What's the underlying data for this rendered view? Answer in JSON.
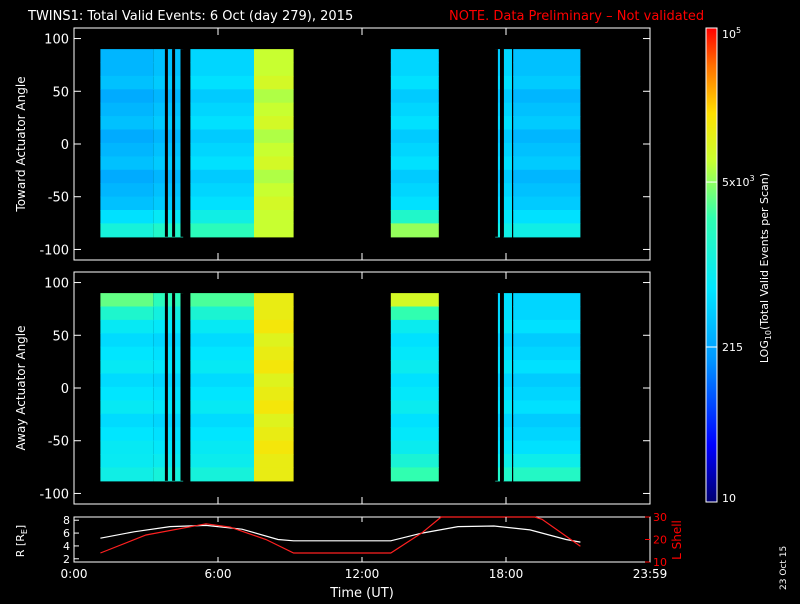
{
  "title": {
    "main": "TWINS1: Total Valid Events:  6 Oct (day 279), 2015",
    "note": "NOTE. Data Preliminary – Not validated"
  },
  "footer_date": "23 Oct 15",
  "colors": {
    "background": "#000000",
    "axis": "#ffffff",
    "note": "#ff0000",
    "orbit_r": "#ffffff",
    "orbit_l": "#ff2020"
  },
  "chart_data": [
    {
      "type": "heatmap",
      "id": "toward",
      "ylabel": "Toward Actuator Angle",
      "xlim": [
        0,
        24
      ],
      "ylim": [
        -110,
        110
      ],
      "yticks": [
        100,
        50,
        0,
        -50,
        -100
      ],
      "y_range_filled": [
        -88,
        90
      ],
      "scale": "log",
      "level_scale": "0 = 10 events, 1 = 10^5 events (log10)",
      "segments": [
        {
          "x0": 1.1,
          "x1": 3.3,
          "level_hi": 0.36,
          "level_lo": 0.52,
          "base": 0.36
        },
        {
          "x0": 3.3,
          "x1": 4.55,
          "level_hi": 0.38,
          "level_lo": 0.55,
          "base": 0.38
        },
        {
          "x0": 4.85,
          "x1": 7.5,
          "level_hi": 0.42,
          "level_lo": 0.58,
          "base": 0.42
        },
        {
          "x0": 7.5,
          "x1": 9.15,
          "level_hi": 0.72,
          "level_lo": 0.72,
          "base": 0.72
        },
        {
          "x0": 13.2,
          "x1": 15.2,
          "level_hi": 0.42,
          "level_lo": 0.68,
          "base": 0.42
        },
        {
          "x0": 17.55,
          "x1": 17.75,
          "level_hi": 0.4,
          "level_lo": 0.5,
          "base": 0.4
        },
        {
          "x0": 17.9,
          "x1": 18.25,
          "level_hi": 0.42,
          "level_lo": 0.5,
          "base": 0.42
        },
        {
          "x0": 18.3,
          "x1": 21.1,
          "level_hi": 0.38,
          "level_lo": 0.5,
          "base": 0.38
        }
      ],
      "gaps": [
        3.85,
        4.15,
        4.5,
        17.6,
        17.85
      ]
    },
    {
      "type": "heatmap",
      "id": "away",
      "ylabel": "Away Actuator Angle",
      "xlim": [
        0,
        24
      ],
      "ylim": [
        -110,
        110
      ],
      "yticks": [
        100,
        50,
        0,
        -50,
        -100
      ],
      "y_range_filled": [
        -88,
        90
      ],
      "scale": "log",
      "level_scale": "0 = 10 events, 1 = 10^5 events (log10)",
      "segments": [
        {
          "x0": 1.1,
          "x1": 3.3,
          "level_hi": 0.64,
          "level_lo": 0.5,
          "base": 0.45
        },
        {
          "x0": 3.3,
          "x1": 4.55,
          "level_hi": 0.58,
          "level_lo": 0.52,
          "base": 0.44
        },
        {
          "x0": 4.85,
          "x1": 7.5,
          "level_hi": 0.62,
          "level_lo": 0.52,
          "base": 0.45
        },
        {
          "x0": 7.5,
          "x1": 9.15,
          "level_hi": 0.78,
          "level_lo": 0.78,
          "base": 0.78
        },
        {
          "x0": 13.2,
          "x1": 15.2,
          "level_hi": 0.74,
          "level_lo": 0.6,
          "base": 0.46
        },
        {
          "x0": 17.55,
          "x1": 17.75,
          "level_hi": 0.42,
          "level_lo": 0.55,
          "base": 0.42
        },
        {
          "x0": 17.9,
          "x1": 18.25,
          "level_hi": 0.44,
          "level_lo": 0.55,
          "base": 0.44
        },
        {
          "x0": 18.3,
          "x1": 21.1,
          "level_hi": 0.42,
          "level_lo": 0.56,
          "base": 0.42
        }
      ],
      "gaps": [
        3.85,
        4.15,
        4.5,
        17.6,
        17.85
      ]
    },
    {
      "type": "line",
      "id": "orbit",
      "ylabel": "R [R",
      "ylabel_sub": "E",
      "ylabel_end": "]",
      "y2label": "L Shell",
      "xlabel": "Time (UT)",
      "xlim": [
        0,
        24
      ],
      "xticks": [
        {
          "x": 0,
          "label": "0:00"
        },
        {
          "x": 6,
          "label": "6:00"
        },
        {
          "x": 12,
          "label": "12:00"
        },
        {
          "x": 18,
          "label": "18:00"
        },
        {
          "x": 24,
          "label": "23:59"
        }
      ],
      "ylim": [
        1.5,
        8.5
      ],
      "yticks": [
        8,
        6,
        4,
        2
      ],
      "y2lim": [
        10,
        30
      ],
      "y2ticks": [
        30,
        20,
        10
      ],
      "series": [
        {
          "axis": "left",
          "color": "#ffffff",
          "x": [
            1.1,
            2.5,
            4,
            5.5,
            7,
            8.5,
            9.15,
            13.2,
            14.5,
            16,
            17.5,
            19,
            20.5,
            21.1
          ],
          "y": [
            5.2,
            6.2,
            7.0,
            7.2,
            6.6,
            5.0,
            4.8,
            4.8,
            6.0,
            7.0,
            7.1,
            6.5,
            5.0,
            4.6
          ]
        },
        {
          "axis": "right",
          "color": "#ff2020",
          "x": [
            1.1,
            3,
            5.5,
            6.5,
            8,
            9.15,
            13.2,
            14.5,
            15.3,
            15.6,
            19.2,
            19.5,
            21.1
          ],
          "y": [
            14,
            22,
            27,
            25.5,
            20,
            14,
            14,
            23,
            30,
            31,
            31,
            29,
            17
          ]
        }
      ]
    }
  ],
  "colorbar": {
    "label": "LOG",
    "label_sub": "10",
    "label_rest": "(Total Valid  Events per Scan)",
    "ticks": [
      {
        "value": 100000,
        "base": "10",
        "exp": "5",
        "frac": 1.0
      },
      {
        "value": 5000,
        "base": "5x10",
        "exp": "3",
        "frac": 0.675
      },
      {
        "value": 215,
        "base": "215",
        "exp": "",
        "frac": 0.327
      },
      {
        "value": 10,
        "base": "10",
        "exp": "",
        "frac": 0.0
      }
    ]
  }
}
